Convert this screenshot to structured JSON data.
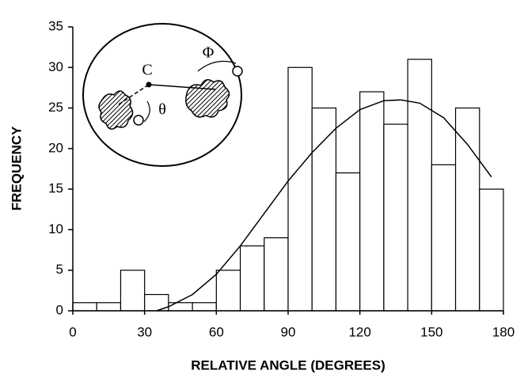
{
  "chart_data": {
    "type": "histogram",
    "x_label": "RELATIVE ANGLE (DEGREES)",
    "y_label": "FREQUENCY",
    "bins": [
      0,
      10,
      20,
      30,
      40,
      50,
      60,
      70,
      80,
      90,
      100,
      110,
      120,
      130,
      140,
      150,
      160,
      170,
      180
    ],
    "counts": [
      1,
      1,
      5,
      2,
      1,
      1,
      5,
      8,
      9,
      30,
      25,
      17,
      27,
      23,
      31,
      18,
      25,
      15
    ],
    "color": "#ffffff",
    "edge_color": "#000000",
    "fit": {
      "x": [
        35,
        40,
        50,
        60,
        70,
        80,
        90,
        100,
        110,
        120,
        130,
        137,
        145,
        155,
        165,
        175
      ],
      "values": [
        0,
        0.5,
        2,
        4.5,
        8,
        12,
        16,
        19.5,
        22.5,
        24.8,
        25.9,
        26,
        25.6,
        23.8,
        20.5,
        16.5
      ],
      "color": "#000000"
    },
    "xlim": [
      0,
      180
    ],
    "xticks": [
      0,
      30,
      60,
      90,
      120,
      150,
      180
    ],
    "ylim": [
      0,
      35
    ],
    "yticks": [
      0,
      5,
      10,
      15,
      20,
      25,
      30,
      35
    ],
    "grid": false
  },
  "inset": {
    "labels": [
      "C",
      "Φ",
      "θ"
    ]
  }
}
